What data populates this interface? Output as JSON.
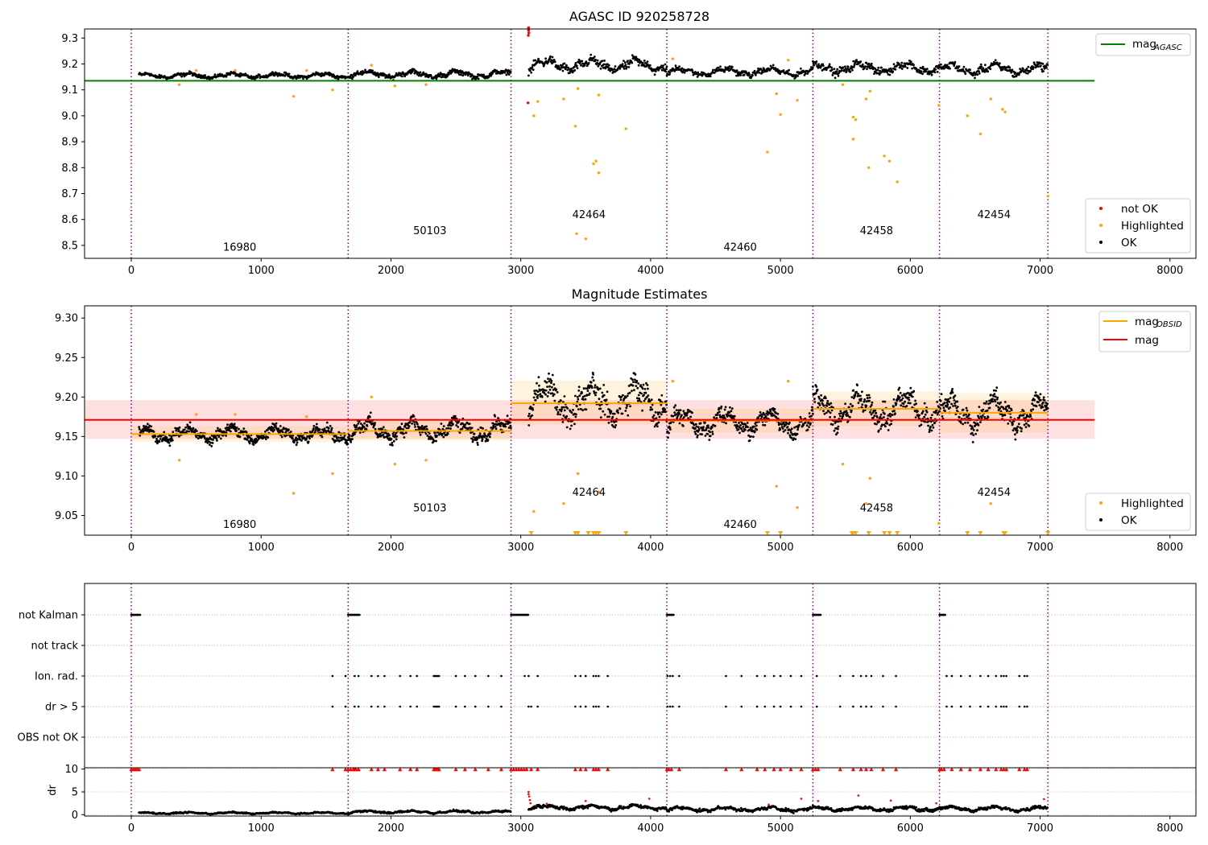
{
  "figure": {
    "panels": [
      "top",
      "middle",
      "flags",
      "dr"
    ]
  },
  "chart_data": [
    {
      "id": "top",
      "type": "scatter",
      "title": "AGASC ID 920258728",
      "xlim": [
        -360,
        8200
      ],
      "ylim": [
        8.45,
        9.335
      ],
      "xticks": [
        0,
        1000,
        2000,
        3000,
        4000,
        5000,
        6000,
        7000,
        8000
      ],
      "yticks": [
        8.5,
        8.6,
        8.7,
        8.8,
        8.9,
        9.0,
        9.1,
        9.2,
        9.3
      ],
      "ytick_labels": [
        "8.5",
        "8.6",
        "8.7",
        "8.8",
        "8.9",
        "9.0",
        "9.1",
        "9.2",
        "9.3"
      ],
      "reference_line": {
        "name": "mag_AGASC",
        "value": 9.135,
        "x": [
          -360,
          7420
        ],
        "color": "#008000"
      },
      "obsid_boundaries": [
        0,
        1670,
        2925,
        4125,
        5250,
        6225,
        7060
      ],
      "obsid_labels": [
        {
          "text": "16980",
          "x": 835,
          "y": 8.48
        },
        {
          "text": "50103",
          "x": 2300,
          "y": 8.543
        },
        {
          "text": "42464",
          "x": 3525,
          "y": 8.605
        },
        {
          "text": "42460",
          "x": 4690,
          "y": 8.48
        },
        {
          "text": "42458",
          "x": 5740,
          "y": 8.543
        },
        {
          "text": "42454",
          "x": 6645,
          "y": 8.605
        }
      ],
      "series": [
        {
          "name": "not OK",
          "color": "#ff0000"
        },
        {
          "name": "Highlighted",
          "color": "#ffa500"
        },
        {
          "name": "OK",
          "color": "#000000"
        }
      ],
      "ok_segments": [
        {
          "x": [
            60,
            1670
          ],
          "level": 9.155,
          "noise": 0.01
        },
        {
          "x": [
            1670,
            2925
          ],
          "level": 9.16,
          "noise": 0.014
        },
        {
          "x": [
            3060,
            4125
          ],
          "level": 9.195,
          "noise": 0.025
        },
        {
          "x": [
            4125,
            5250
          ],
          "level": 9.17,
          "noise": 0.016
        },
        {
          "x": [
            5250,
            6225
          ],
          "level": 9.185,
          "noise": 0.022
        },
        {
          "x": [
            6225,
            7060
          ],
          "level": 9.18,
          "noise": 0.022
        }
      ],
      "not_ok_points": [
        [
          3060,
          9.34
        ],
        [
          3060,
          9.33
        ],
        [
          3062,
          9.32
        ],
        [
          3058,
          9.31
        ],
        [
          3055,
          9.05
        ]
      ],
      "highlighted_points": [
        [
          370,
          9.12
        ],
        [
          500,
          9.175
        ],
        [
          800,
          9.175
        ],
        [
          1250,
          9.075
        ],
        [
          1350,
          9.175
        ],
        [
          1550,
          9.1
        ],
        [
          1850,
          9.195
        ],
        [
          2030,
          9.115
        ],
        [
          2270,
          9.12
        ],
        [
          3100,
          9.0
        ],
        [
          3130,
          9.055
        ],
        [
          3330,
          9.065
        ],
        [
          3420,
          8.96
        ],
        [
          3440,
          9.105
        ],
        [
          3560,
          8.815
        ],
        [
          3580,
          8.825
        ],
        [
          3600,
          8.78
        ],
        [
          3600,
          9.08
        ],
        [
          3810,
          8.95
        ],
        [
          3430,
          8.545
        ],
        [
          3500,
          8.525
        ],
        [
          4170,
          9.22
        ],
        [
          4900,
          8.86
        ],
        [
          4970,
          9.085
        ],
        [
          5000,
          9.005
        ],
        [
          5060,
          9.215
        ],
        [
          5130,
          9.06
        ],
        [
          5480,
          9.12
        ],
        [
          5560,
          8.995
        ],
        [
          5580,
          8.985
        ],
        [
          5560,
          8.91
        ],
        [
          5660,
          9.065
        ],
        [
          5690,
          9.095
        ],
        [
          5680,
          8.8
        ],
        [
          5800,
          8.845
        ],
        [
          5840,
          8.825
        ],
        [
          5900,
          8.745
        ],
        [
          6220,
          9.04
        ],
        [
          6440,
          9.0
        ],
        [
          6540,
          8.93
        ],
        [
          6620,
          9.065
        ],
        [
          6710,
          9.025
        ],
        [
          6730,
          9.015
        ],
        [
          7060,
          8.69
        ]
      ],
      "legends": [
        {
          "position": "upper-right",
          "items": [
            {
              "label": "mag",
              "subscript": "AGASC",
              "color": "#008000",
              "kind": "line"
            }
          ]
        },
        {
          "position": "lower-right",
          "items": [
            {
              "label": "not OK",
              "color": "#ff0000",
              "kind": "dot"
            },
            {
              "label": "Highlighted",
              "color": "#ffa500",
              "kind": "dot"
            },
            {
              "label": "OK",
              "color": "#000000",
              "kind": "dot"
            }
          ]
        }
      ]
    },
    {
      "id": "middle",
      "type": "scatter",
      "title": "Magnitude Estimates",
      "xlim": [
        -360,
        8200
      ],
      "ylim": [
        9.025,
        9.3155
      ],
      "xticks": [
        0,
        1000,
        2000,
        3000,
        4000,
        5000,
        6000,
        7000,
        8000
      ],
      "yticks": [
        9.05,
        9.1,
        9.15,
        9.2,
        9.25,
        9.3
      ],
      "ytick_labels": [
        "9.05",
        "9.10",
        "9.15",
        "9.20",
        "9.25",
        "9.30"
      ],
      "mag": {
        "name": "mag",
        "value": 9.171,
        "band": [
          9.147,
          9.196
        ],
        "x": [
          -360,
          7420
        ],
        "color": "#ff0000"
      },
      "mag_obsid": {
        "name": "mag_OBSID",
        "color": "#ffa500",
        "segments": [
          {
            "x": [
              0,
              1670
            ],
            "value": 9.153,
            "band": [
              9.143,
              9.163
            ]
          },
          {
            "x": [
              1670,
              2925
            ],
            "value": 9.157,
            "band": [
              9.145,
              9.169
            ]
          },
          {
            "x": [
              2925,
              4125
            ],
            "value": 9.192,
            "band": [
              9.165,
              9.221
            ]
          },
          {
            "x": [
              4125,
              5250
            ],
            "value": 9.17,
            "band": [
              9.155,
              9.185
            ]
          },
          {
            "x": [
              5250,
              6225
            ],
            "value": 9.185,
            "band": [
              9.163,
              9.207
            ]
          },
          {
            "x": [
              6225,
              7060
            ],
            "value": 9.18,
            "band": [
              9.155,
              9.205
            ]
          }
        ]
      },
      "obsid_boundaries": [
        0,
        1670,
        2925,
        4125,
        5250,
        6225,
        7060
      ],
      "obsid_labels": [
        {
          "text": "16980",
          "x": 835,
          "y": 9.034
        },
        {
          "text": "50103",
          "x": 2300,
          "y": 9.055
        },
        {
          "text": "42464",
          "x": 3525,
          "y": 9.075
        },
        {
          "text": "42460",
          "x": 4690,
          "y": 9.034
        },
        {
          "text": "42458",
          "x": 5740,
          "y": 9.055
        },
        {
          "text": "42454",
          "x": 6645,
          "y": 9.075
        }
      ],
      "ok_segments": [
        {
          "x": [
            60,
            1670
          ],
          "level": 9.153,
          "noise": 0.01
        },
        {
          "x": [
            1670,
            2925
          ],
          "level": 9.158,
          "noise": 0.013
        },
        {
          "x": [
            3060,
            4125
          ],
          "level": 9.195,
          "noise": 0.026
        },
        {
          "x": [
            4125,
            5250
          ],
          "level": 9.168,
          "noise": 0.016
        },
        {
          "x": [
            5250,
            6225
          ],
          "level": 9.185,
          "noise": 0.022
        },
        {
          "x": [
            6225,
            7060
          ],
          "level": 9.18,
          "noise": 0.022
        }
      ],
      "highlighted_points": [
        [
          370,
          9.12
        ],
        [
          500,
          9.178
        ],
        [
          800,
          9.178
        ],
        [
          1250,
          9.078
        ],
        [
          1350,
          9.175
        ],
        [
          1550,
          9.103
        ],
        [
          1850,
          9.2
        ],
        [
          2030,
          9.115
        ],
        [
          2270,
          9.12
        ],
        [
          3100,
          9.055
        ],
        [
          3330,
          9.065
        ],
        [
          3440,
          9.103
        ],
        [
          3600,
          9.08
        ],
        [
          4170,
          9.22
        ],
        [
          4970,
          9.087
        ],
        [
          5060,
          9.22
        ],
        [
          5130,
          9.06
        ],
        [
          5480,
          9.115
        ],
        [
          5660,
          9.065
        ],
        [
          5690,
          9.097
        ],
        [
          6220,
          9.04
        ],
        [
          6620,
          9.065
        ]
      ],
      "clipped_markers_x": [
        3080,
        3420,
        3440,
        3520,
        3560,
        3580,
        3600,
        3810,
        4900,
        5000,
        5550,
        5560,
        5580,
        5680,
        5800,
        5840,
        5900,
        6440,
        6540,
        6720,
        6730,
        7060
      ],
      "legends": [
        {
          "position": "upper-right",
          "items": [
            {
              "label": "mag",
              "subscript": "OBSID",
              "color": "#ffa500",
              "kind": "line"
            },
            {
              "label": "mag",
              "color": "#ff0000",
              "kind": "line"
            }
          ]
        },
        {
          "position": "lower-right",
          "items": [
            {
              "label": "Highlighted",
              "color": "#ffa500",
              "kind": "dot"
            },
            {
              "label": "OK",
              "color": "#000000",
              "kind": "dot"
            }
          ]
        }
      ]
    },
    {
      "id": "flags",
      "type": "scatter",
      "xlim": [
        -360,
        8200
      ],
      "categories": [
        "not Kalman",
        "not track",
        "Ion. rad.",
        "dr > 5",
        "OBS not OK"
      ],
      "not_kalman_ranges": [
        [
          0,
          70
        ],
        [
          1670,
          1760
        ],
        [
          2925,
          3060
        ],
        [
          4125,
          4180
        ],
        [
          5250,
          5310
        ],
        [
          6225,
          6270
        ]
      ],
      "ion_rad_x": [
        1550,
        1650,
        1720,
        1750,
        1850,
        1900,
        1950,
        2070,
        2150,
        2200,
        2330,
        2340,
        2350,
        2360,
        2370,
        2500,
        2570,
        2650,
        2750,
        2850,
        3030,
        3060,
        3130,
        3420,
        3460,
        3500,
        3560,
        3580,
        3600,
        3670,
        4130,
        4150,
        4170,
        4220,
        4580,
        4700,
        4820,
        4880,
        4950,
        5000,
        5080,
        5160,
        5280,
        5460,
        5560,
        5620,
        5660,
        5700,
        5790,
        5890,
        6280,
        6320,
        6390,
        6460,
        6540,
        6600,
        6660,
        6700,
        6720,
        6740,
        6840,
        6880,
        6900
      ],
      "dr5_x": [
        1550,
        1650,
        1720,
        1750,
        1850,
        1900,
        1950,
        2070,
        2150,
        2200,
        2330,
        2340,
        2350,
        2360,
        2370,
        2500,
        2570,
        2650,
        2750,
        2850,
        3060,
        3080,
        3130,
        3420,
        3460,
        3500,
        3560,
        3580,
        3600,
        3670,
        4130,
        4150,
        4170,
        4220,
        4580,
        4700,
        4820,
        4880,
        4950,
        5000,
        5080,
        5160,
        5280,
        5460,
        5560,
        5620,
        5660,
        5700,
        5790,
        5890,
        6280,
        6320,
        6390,
        6460,
        6540,
        6600,
        6660,
        6700,
        6720,
        6740,
        6840,
        6880,
        6900
      ]
    },
    {
      "id": "dr",
      "type": "scatter",
      "ylabel": "dr",
      "xlim": [
        -360,
        8200
      ],
      "ylim": [
        -0.3,
        10.3
      ],
      "xticks": [
        0,
        1000,
        2000,
        3000,
        4000,
        5000,
        6000,
        7000,
        8000
      ],
      "yticks": [
        0,
        5,
        10
      ],
      "ok_segments": [
        {
          "x": [
            60,
            1670
          ],
          "level": 0.35,
          "noise": 0.2
        },
        {
          "x": [
            1670,
            2925
          ],
          "level": 0.6,
          "noise": 0.3
        },
        {
          "x": [
            3060,
            4125
          ],
          "level": 1.6,
          "noise": 0.55
        },
        {
          "x": [
            4125,
            5250
          ],
          "level": 1.2,
          "noise": 0.5
        },
        {
          "x": [
            5250,
            6225
          ],
          "level": 1.3,
          "noise": 0.5
        },
        {
          "x": [
            6225,
            7060
          ],
          "level": 1.3,
          "noise": 0.5
        }
      ],
      "capped_x": [
        0,
        15,
        30,
        45,
        60,
        1670,
        1690,
        1710,
        1730,
        1750,
        2925,
        2945,
        2965,
        2985,
        3005,
        3025,
        3045,
        4125,
        4140,
        4160,
        5250,
        5270,
        5290,
        6225,
        6240,
        6260,
        1550,
        1650,
        1720,
        1750,
        1850,
        1900,
        1950,
        2070,
        2150,
        2200,
        2330,
        2340,
        2350,
        2360,
        2370,
        2500,
        2570,
        2650,
        2750,
        2850,
        3080,
        3130,
        3420,
        3460,
        3500,
        3560,
        3580,
        3600,
        3670,
        4220,
        4580,
        4700,
        4820,
        4880,
        4950,
        5000,
        5080,
        5160,
        5460,
        5560,
        5620,
        5660,
        5700,
        5790,
        5890,
        6320,
        6390,
        6460,
        6540,
        6600,
        6660,
        6700,
        6720,
        6740,
        6840,
        6880,
        6900
      ],
      "red_low_points": [
        [
          3060,
          5.0
        ],
        [
          3060,
          4.5
        ],
        [
          3065,
          4.0
        ],
        [
          3070,
          3.2
        ],
        [
          3075,
          2.5
        ],
        [
          3200,
          2.4
        ],
        [
          3500,
          3.0
        ],
        [
          3990,
          3.5
        ],
        [
          4910,
          2.2
        ],
        [
          5160,
          3.5
        ],
        [
          5290,
          3.0
        ],
        [
          5600,
          4.2
        ],
        [
          5850,
          3.1
        ],
        [
          6200,
          2.5
        ],
        [
          7030,
          3.4
        ]
      ]
    }
  ]
}
